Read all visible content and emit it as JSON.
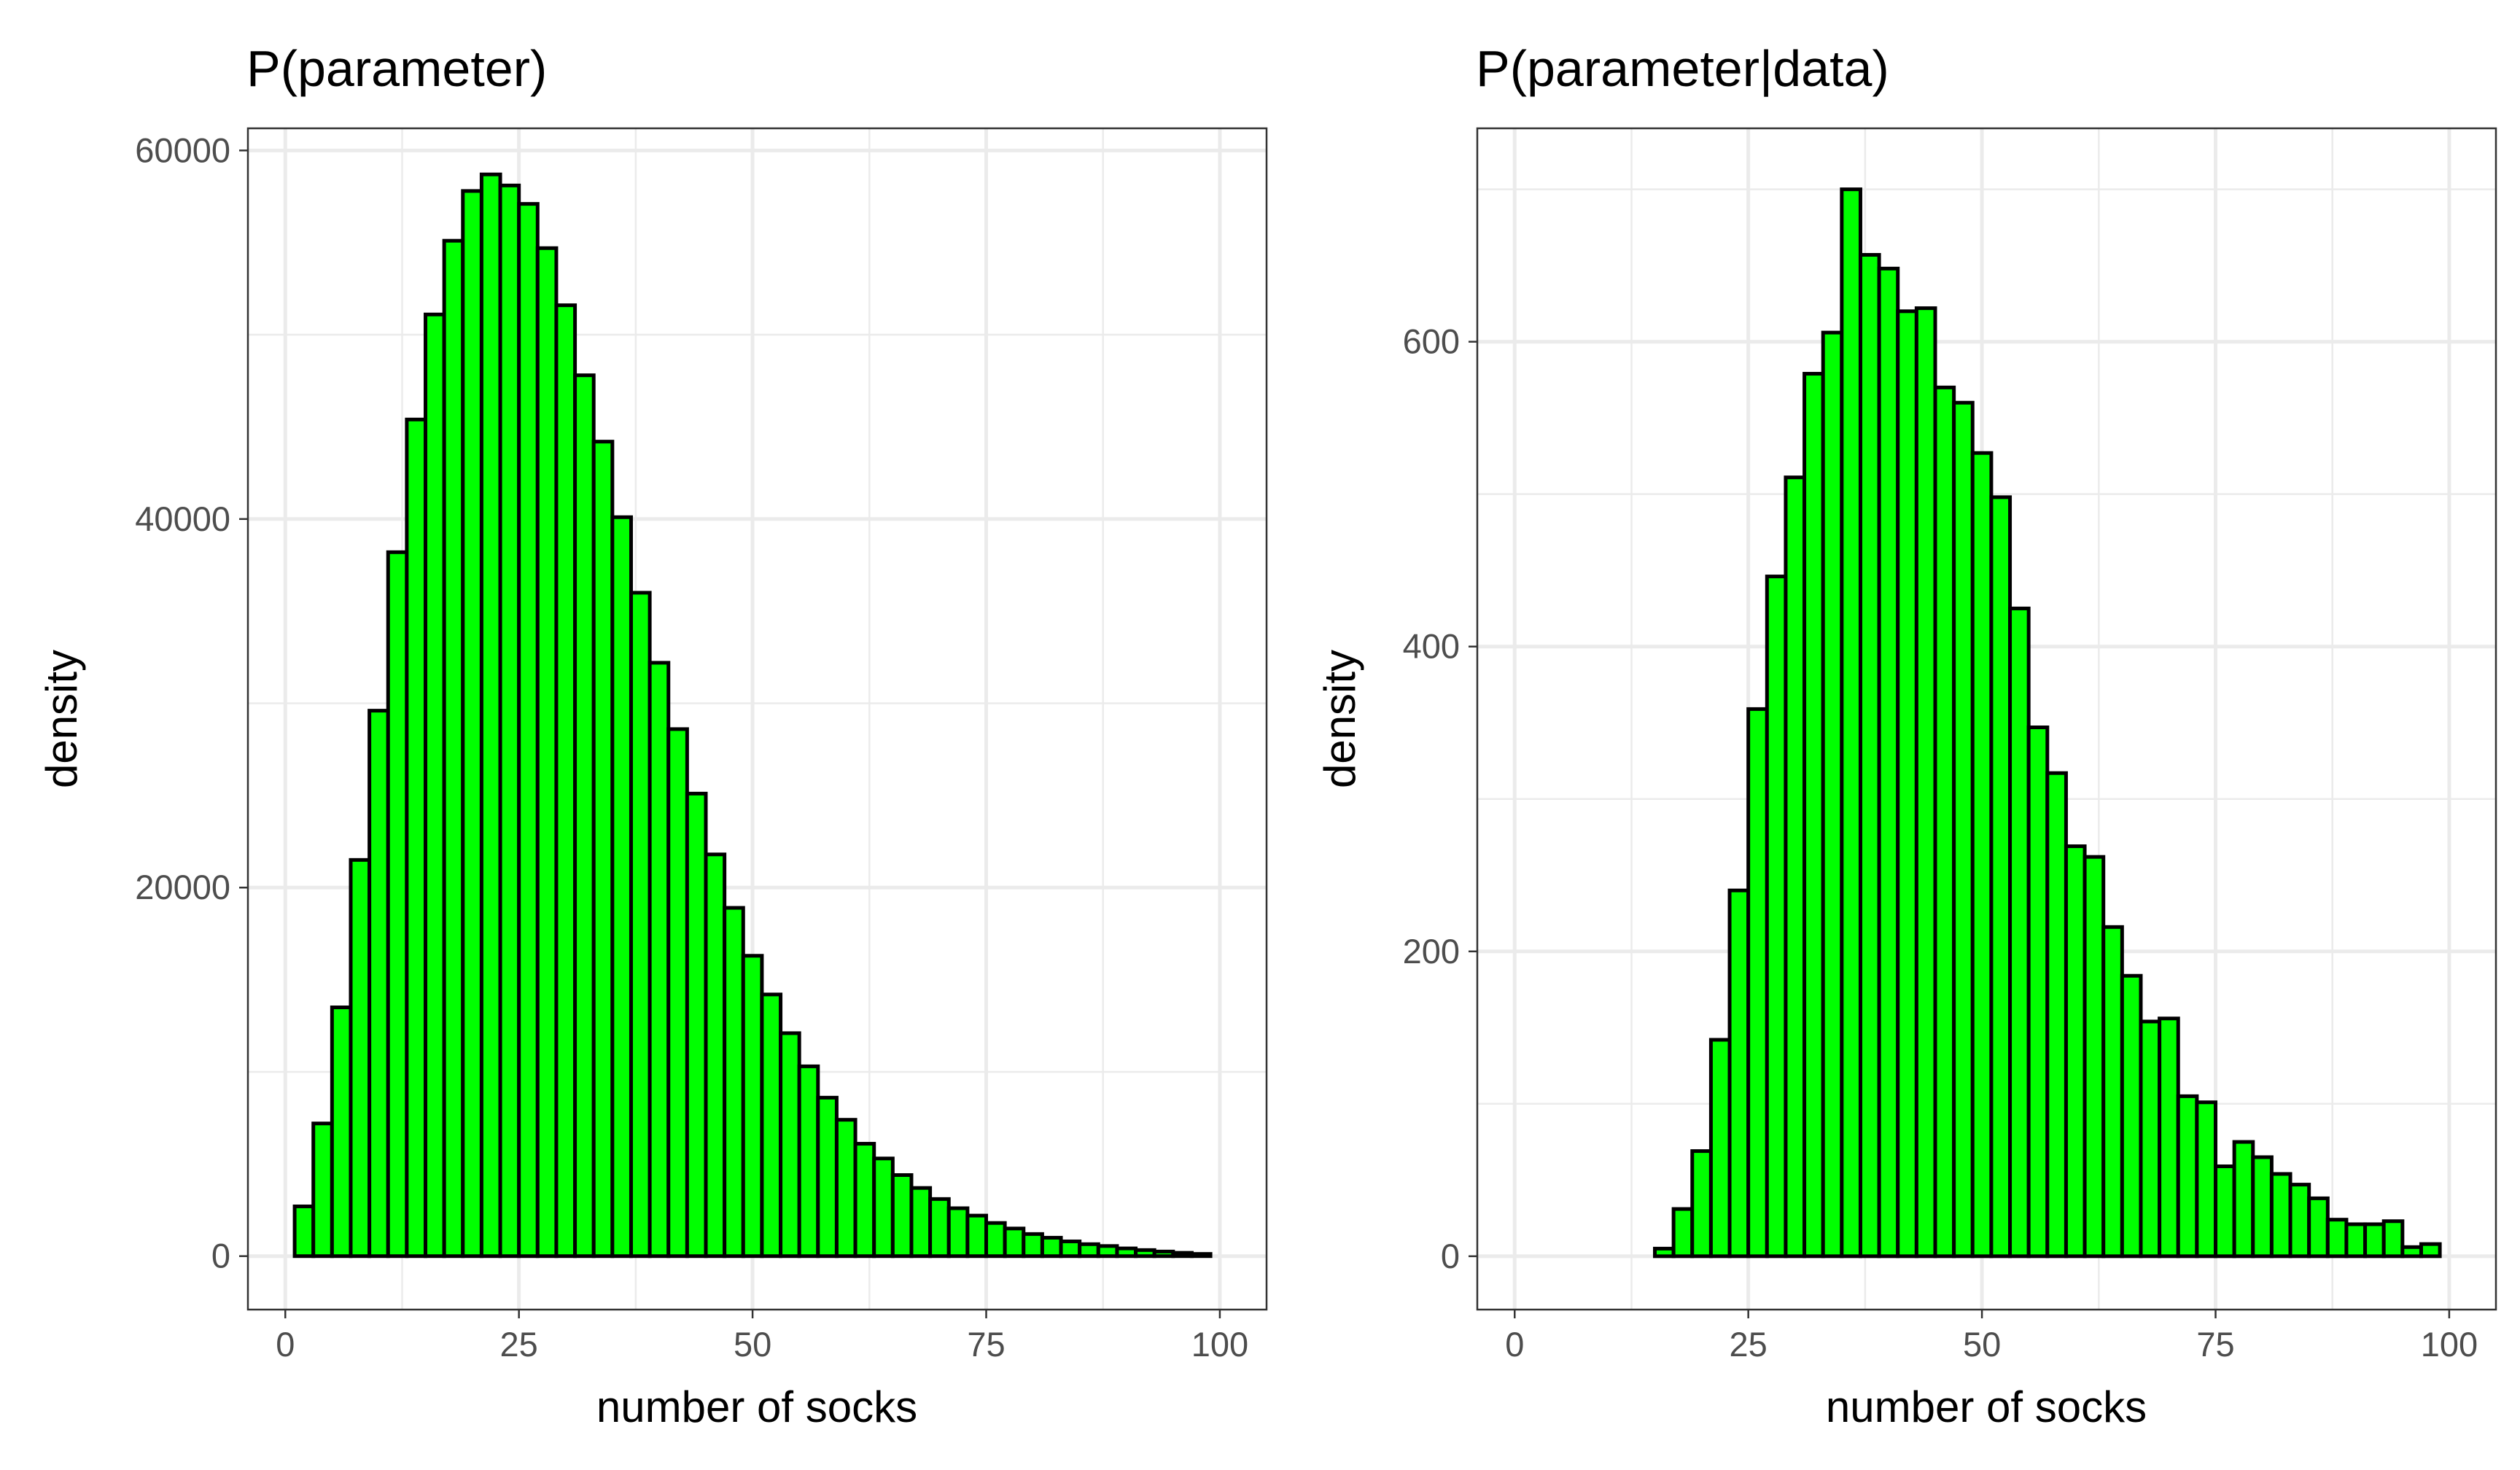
{
  "chart_data": [
    {
      "type": "bar",
      "title": "P(parameter)",
      "xlabel": "number of socks",
      "ylabel": "density",
      "xlim": [
        -4,
        105
      ],
      "ylim": [
        -2900,
        61200
      ],
      "xticks": [
        0,
        25,
        50,
        75,
        100
      ],
      "xtick_labels": [
        "0",
        "25",
        "50",
        "75",
        "100"
      ],
      "yticks": [
        0,
        20000,
        40000,
        60000
      ],
      "ytick_labels": [
        "0",
        "20000",
        "40000",
        "60000"
      ],
      "grid": true,
      "bar_color": "#00ff00",
      "bar_edge_color": "#000000",
      "bin_width": 2,
      "x": [
        2,
        4,
        6,
        8,
        10,
        12,
        14,
        16,
        18,
        20,
        22,
        24,
        26,
        28,
        30,
        32,
        34,
        36,
        38,
        40,
        42,
        44,
        46,
        48,
        50,
        52,
        54,
        56,
        58,
        60,
        62,
        64,
        66,
        68,
        70,
        72,
        74,
        76,
        78,
        80,
        82,
        84,
        86,
        88,
        90,
        92,
        94,
        96,
        98
      ],
      "values": [
        2700,
        7200,
        13500,
        21500,
        29600,
        38200,
        45400,
        51100,
        55100,
        57800,
        58700,
        58100,
        57100,
        54700,
        51600,
        47800,
        44200,
        40100,
        36000,
        32200,
        28600,
        25100,
        21800,
        18900,
        16300,
        14200,
        12100,
        10300,
        8600,
        7400,
        6100,
        5300,
        4400,
        3700,
        3100,
        2600,
        2200,
        1800,
        1500,
        1200,
        1000,
        800,
        650,
        550,
        420,
        330,
        250,
        180,
        120
      ]
    },
    {
      "type": "bar",
      "title": "P(parameter|data)",
      "xlabel": "number of socks",
      "ylabel": "density",
      "xlim": [
        -4,
        105
      ],
      "ylim": [
        -35,
        740
      ],
      "xticks": [
        0,
        25,
        50,
        75,
        100
      ],
      "xtick_labels": [
        "0",
        "25",
        "50",
        "75",
        "100"
      ],
      "yticks": [
        0,
        200,
        400,
        600
      ],
      "ytick_labels": [
        "0",
        "200",
        "400",
        "600"
      ],
      "grid": true,
      "bar_color": "#00ff00",
      "bar_edge_color": "#000000",
      "bin_width": 2,
      "x": [
        2,
        4,
        6,
        8,
        10,
        12,
        14,
        16,
        18,
        20,
        22,
        24,
        26,
        28,
        30,
        32,
        34,
        36,
        38,
        40,
        42,
        44,
        46,
        48,
        50,
        52,
        54,
        56,
        58,
        60,
        62,
        64,
        66,
        68,
        70,
        72,
        74,
        76,
        78,
        80,
        82,
        84,
        86,
        88,
        90,
        92,
        94,
        96,
        98
      ],
      "values": [
        0,
        0,
        0,
        0,
        0,
        0,
        0,
        5,
        31,
        69,
        142,
        240,
        359,
        446,
        511,
        579,
        606,
        700,
        657,
        648,
        620,
        622,
        570,
        560,
        527,
        498,
        425,
        347,
        317,
        269,
        262,
        216,
        184,
        154,
        156,
        105,
        101,
        59,
        75,
        65,
        54,
        47,
        38,
        24,
        21,
        21,
        23,
        6,
        8
      ]
    }
  ]
}
